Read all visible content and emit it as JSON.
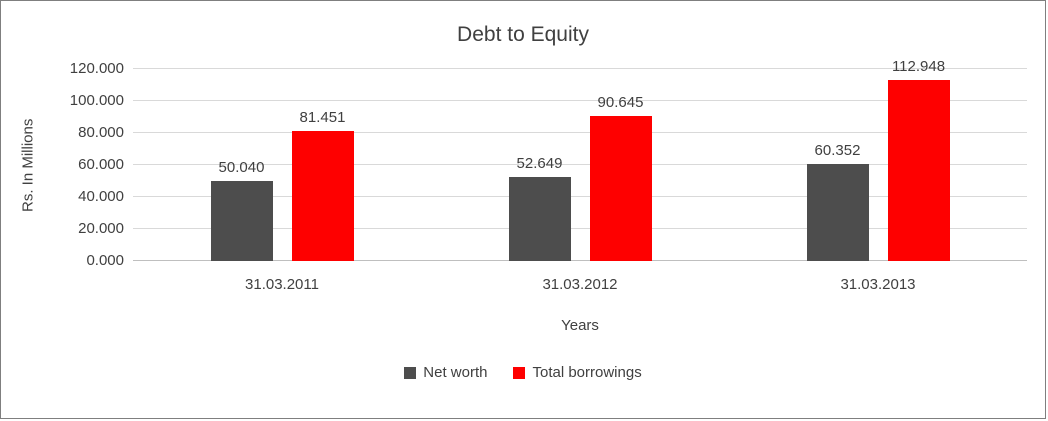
{
  "chart_data": {
    "type": "bar",
    "title": "Debt to Equity",
    "xlabel": "Years",
    "ylabel": "Rs. In Millions",
    "categories": [
      "31.03.2011",
      "31.03.2012",
      "31.03.2013"
    ],
    "series": [
      {
        "name": "Net worth",
        "color": "#4d4d4d",
        "values": [
          50.04,
          52.649,
          60.352
        ],
        "value_labels": [
          "50.040",
          "52.649",
          "60.352"
        ]
      },
      {
        "name": "Total borrowings",
        "color": "#fe0000",
        "values": [
          81.451,
          90.645,
          112.948
        ],
        "value_labels": [
          "81.451",
          "90.645",
          "112.948"
        ]
      }
    ],
    "ylim": [
      0,
      120
    ],
    "yticks": [
      0,
      20,
      40,
      60,
      80,
      100,
      120
    ],
    "ytick_labels": [
      "0.000",
      "20.000",
      "40.000",
      "60.000",
      "80.000",
      "100.000",
      "120.000"
    ],
    "grid": true,
    "legend_position": "bottom",
    "colors": {
      "text": "#404040",
      "gridline": "#d9d9d9",
      "axis_line": "#bfbfbf"
    }
  }
}
